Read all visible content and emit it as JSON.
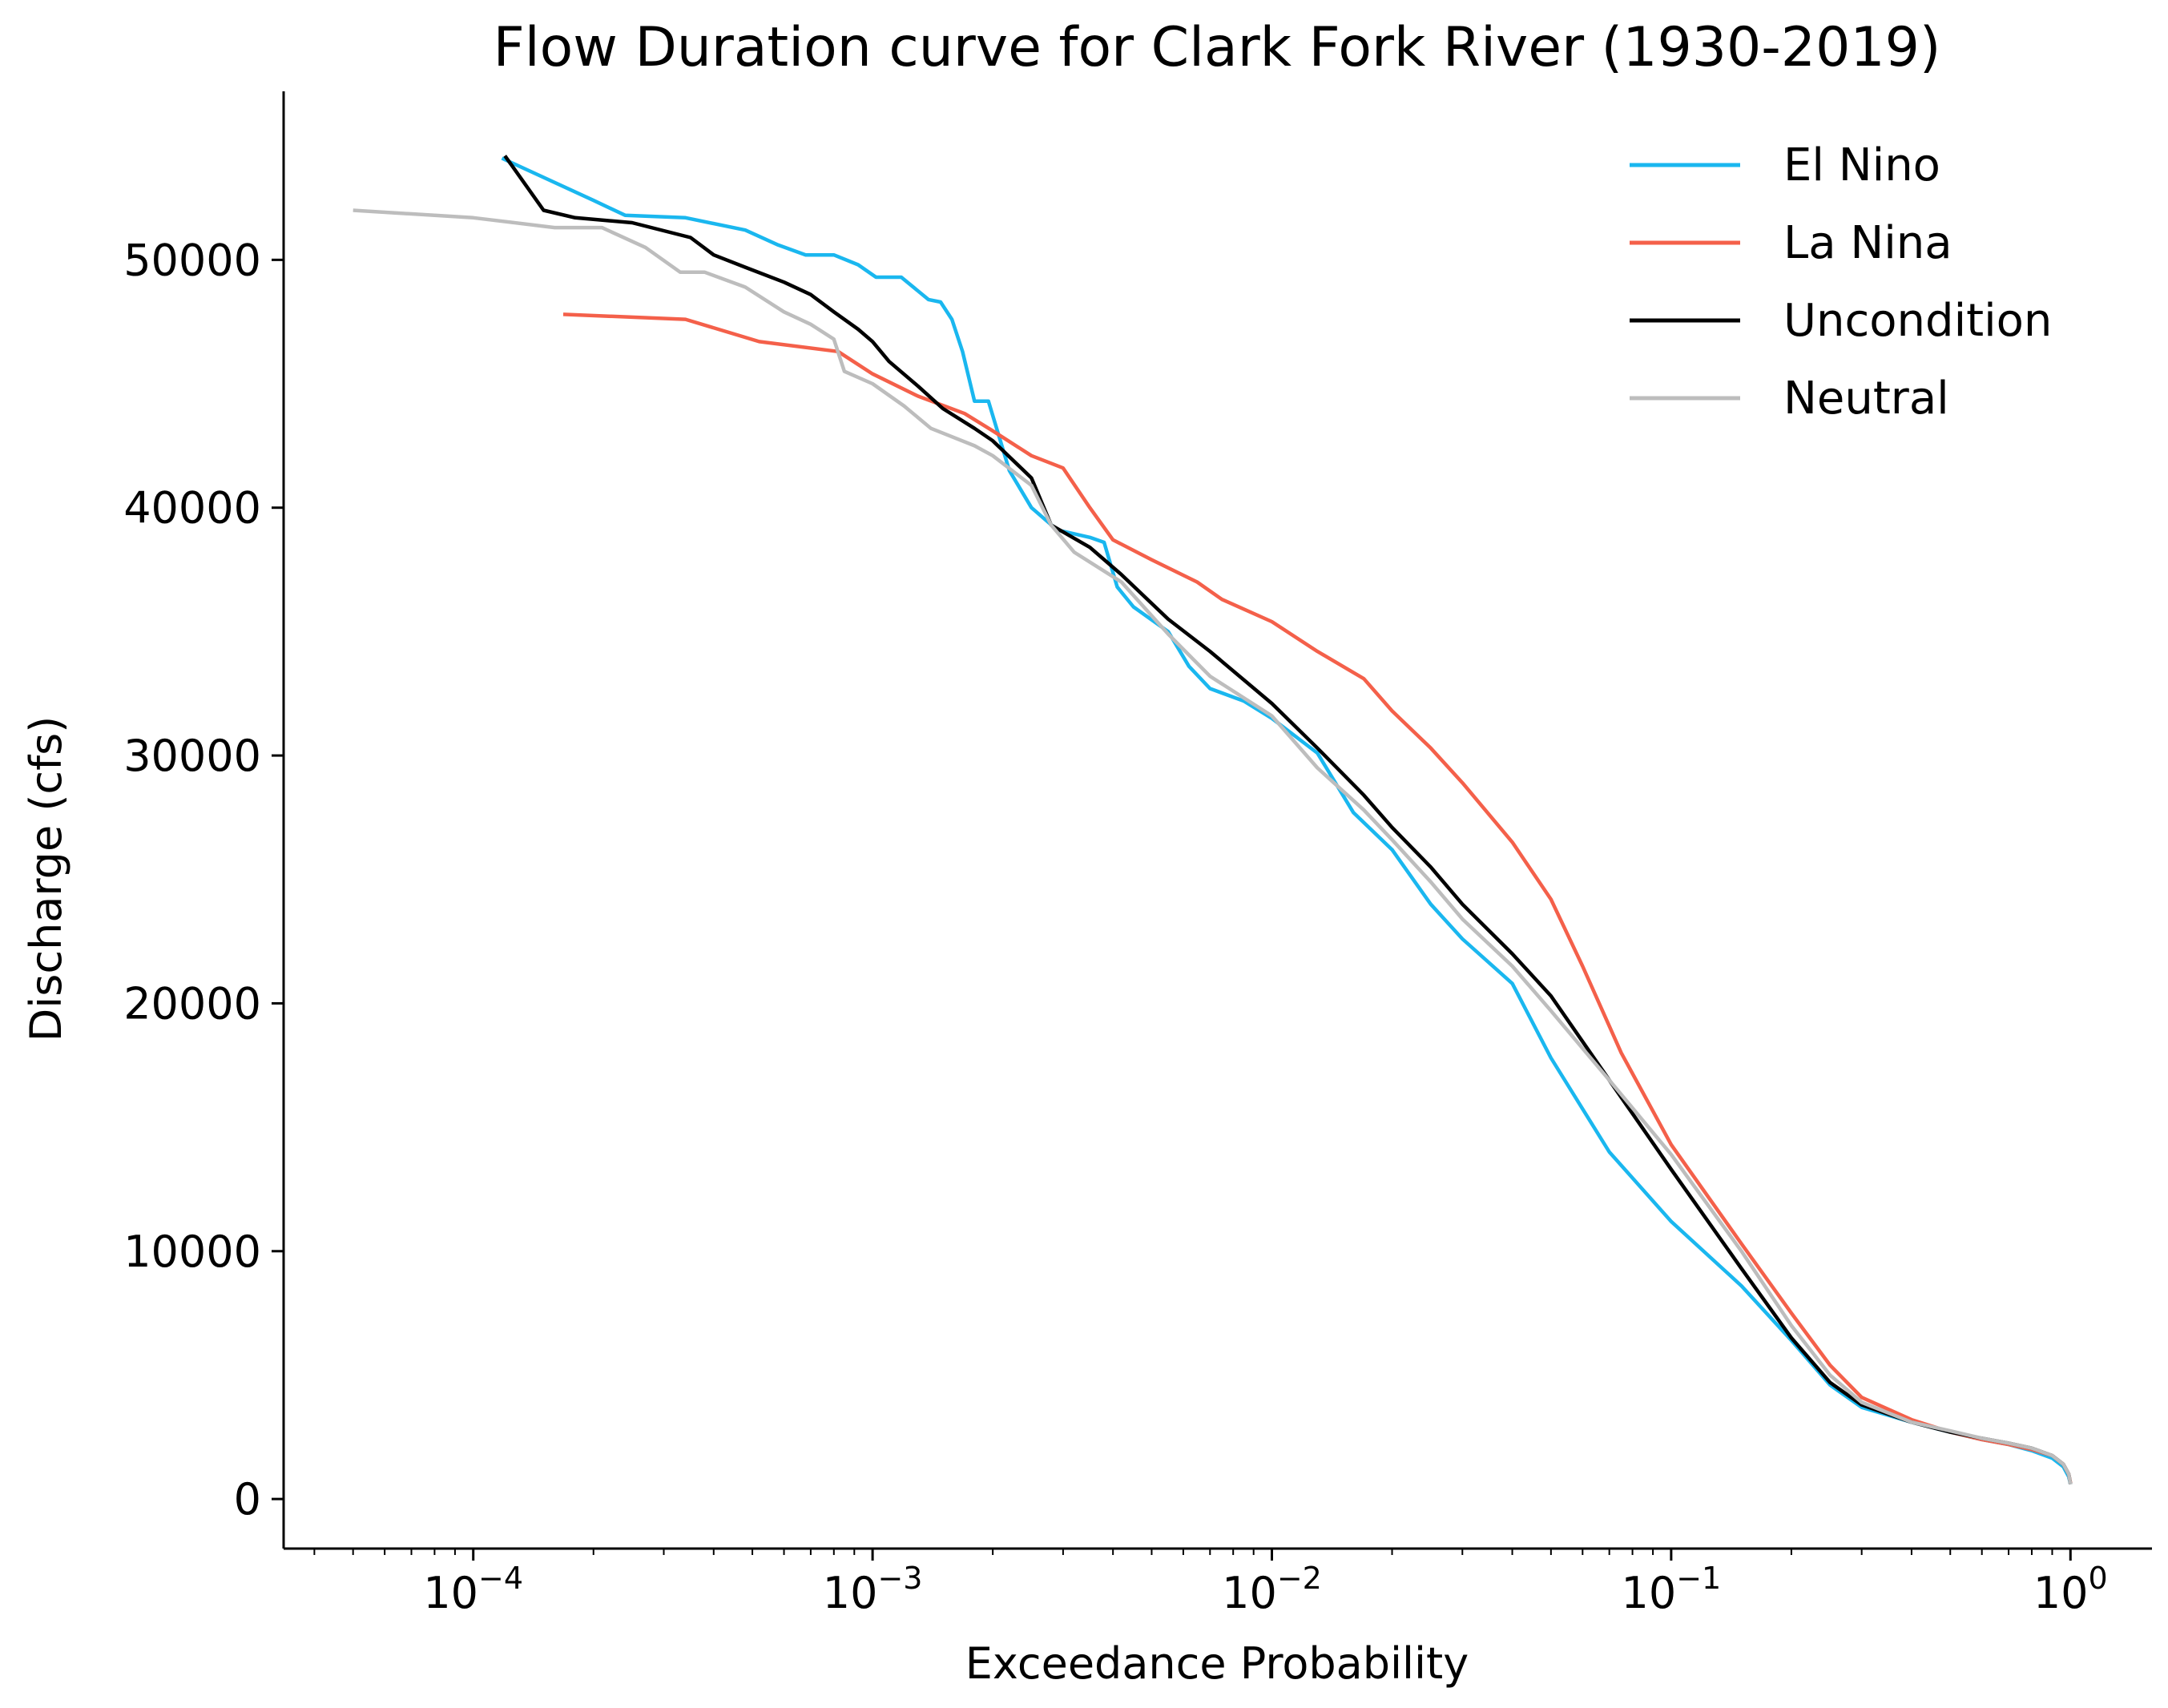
{
  "chart_data": {
    "type": "line",
    "title": "Flow Duration curve for Clark Fork River (1930-2019)",
    "xlabel": "Exceedance Probability",
    "ylabel": "Discharge (cfs)",
    "x_scale": "log",
    "xlim": [
      3.35e-05,
      1.6
    ],
    "ylim": [
      -2000,
      56800
    ],
    "x_ticks": [
      {
        "value": 0.0001,
        "base": "10",
        "exp": "−4"
      },
      {
        "value": 0.001,
        "base": "10",
        "exp": "−3"
      },
      {
        "value": 0.01,
        "base": "10",
        "exp": "−2"
      },
      {
        "value": 0.1,
        "base": "10",
        "exp": "−1"
      },
      {
        "value": 1,
        "base": "10",
        "exp": "0"
      }
    ],
    "y_ticks": [
      {
        "value": 0,
        "label": "0"
      },
      {
        "value": 10000,
        "label": "10000"
      },
      {
        "value": 20000,
        "label": "20000"
      },
      {
        "value": 30000,
        "label": "30000"
      },
      {
        "value": 40000,
        "label": "40000"
      },
      {
        "value": 50000,
        "label": "50000"
      }
    ],
    "legend_position": "top-right",
    "grid": false,
    "series": [
      {
        "name": "El Nino",
        "color": "#1ab7ef",
        "points": [
          [
            0.000118,
            54100
          ],
          [
            0.0002,
            52400
          ],
          [
            0.00024,
            51800
          ],
          [
            0.00034,
            51700
          ],
          [
            0.00048,
            51200
          ],
          [
            0.00058,
            50600
          ],
          [
            0.00068,
            50200
          ],
          [
            0.0008,
            50200
          ],
          [
            0.00092,
            49800
          ],
          [
            0.00102,
            49300
          ],
          [
            0.00118,
            49300
          ],
          [
            0.00138,
            48400
          ],
          [
            0.00148,
            48300
          ],
          [
            0.00158,
            47600
          ],
          [
            0.00168,
            46300
          ],
          [
            0.0018,
            44300
          ],
          [
            0.00195,
            44300
          ],
          [
            0.0022,
            41500
          ],
          [
            0.0025,
            40000
          ],
          [
            0.0029,
            39100
          ],
          [
            0.0035,
            38800
          ],
          [
            0.0038,
            38600
          ],
          [
            0.0041,
            36800
          ],
          [
            0.0045,
            36000
          ],
          [
            0.0055,
            35000
          ],
          [
            0.0062,
            33600
          ],
          [
            0.007,
            32700
          ],
          [
            0.0085,
            32200
          ],
          [
            0.01,
            31500
          ],
          [
            0.013,
            30100
          ],
          [
            0.016,
            27700
          ],
          [
            0.02,
            26200
          ],
          [
            0.025,
            24000
          ],
          [
            0.03,
            22600
          ],
          [
            0.04,
            20800
          ],
          [
            0.05,
            17800
          ],
          [
            0.07,
            14000
          ],
          [
            0.1,
            11200
          ],
          [
            0.15,
            8600
          ],
          [
            0.2,
            6400
          ],
          [
            0.25,
            4600
          ],
          [
            0.3,
            3700
          ],
          [
            0.4,
            3100
          ],
          [
            0.5,
            2700
          ],
          [
            0.6,
            2400
          ],
          [
            0.7,
            2200
          ],
          [
            0.8,
            1950
          ],
          [
            0.9,
            1650
          ],
          [
            0.96,
            1300
          ],
          [
            0.99,
            900
          ],
          [
            1.0,
            600
          ]
        ]
      },
      {
        "name": "La Nina",
        "color": "#f4604a",
        "points": [
          [
            0.000168,
            47800
          ],
          [
            0.00034,
            47600
          ],
          [
            0.00052,
            46700
          ],
          [
            0.00082,
            46300
          ],
          [
            0.001,
            45400
          ],
          [
            0.0013,
            44500
          ],
          [
            0.0017,
            43800
          ],
          [
            0.002,
            43100
          ],
          [
            0.0025,
            42100
          ],
          [
            0.003,
            41600
          ],
          [
            0.0035,
            40000
          ],
          [
            0.004,
            38700
          ],
          [
            0.005,
            37900
          ],
          [
            0.0065,
            37000
          ],
          [
            0.0075,
            36300
          ],
          [
            0.01,
            35400
          ],
          [
            0.013,
            34200
          ],
          [
            0.017,
            33100
          ],
          [
            0.02,
            31800
          ],
          [
            0.025,
            30300
          ],
          [
            0.03,
            28900
          ],
          [
            0.04,
            26500
          ],
          [
            0.05,
            24200
          ],
          [
            0.06,
            21500
          ],
          [
            0.075,
            18000
          ],
          [
            0.1,
            14300
          ],
          [
            0.15,
            10300
          ],
          [
            0.2,
            7500
          ],
          [
            0.25,
            5400
          ],
          [
            0.3,
            4100
          ],
          [
            0.4,
            3200
          ],
          [
            0.5,
            2700
          ],
          [
            0.6,
            2400
          ],
          [
            0.7,
            2200
          ],
          [
            0.8,
            2000
          ],
          [
            0.9,
            1750
          ],
          [
            0.96,
            1400
          ],
          [
            0.99,
            1000
          ],
          [
            1.0,
            650
          ]
        ]
      },
      {
        "name": "Uncondition",
        "color": "#000000",
        "points": [
          [
            0.00012,
            54200
          ],
          [
            0.00015,
            52000
          ],
          [
            0.00018,
            51700
          ],
          [
            0.00025,
            51500
          ],
          [
            0.00035,
            50900
          ],
          [
            0.0004,
            50200
          ],
          [
            0.00048,
            49700
          ],
          [
            0.0006,
            49100
          ],
          [
            0.0007,
            48600
          ],
          [
            0.0008,
            47900
          ],
          [
            0.00092,
            47200
          ],
          [
            0.001,
            46700
          ],
          [
            0.0011,
            45900
          ],
          [
            0.0013,
            44900
          ],
          [
            0.0015,
            44000
          ],
          [
            0.0018,
            43200
          ],
          [
            0.002,
            42700
          ],
          [
            0.0025,
            41200
          ],
          [
            0.0028,
            39300
          ],
          [
            0.0035,
            38400
          ],
          [
            0.0042,
            37300
          ],
          [
            0.0055,
            35500
          ],
          [
            0.007,
            34200
          ],
          [
            0.01,
            32100
          ],
          [
            0.013,
            30300
          ],
          [
            0.017,
            28400
          ],
          [
            0.02,
            27100
          ],
          [
            0.025,
            25500
          ],
          [
            0.03,
            24000
          ],
          [
            0.04,
            22000
          ],
          [
            0.05,
            20300
          ],
          [
            0.07,
            16900
          ],
          [
            0.1,
            13300
          ],
          [
            0.15,
            9300
          ],
          [
            0.2,
            6500
          ],
          [
            0.25,
            4700
          ],
          [
            0.3,
            3800
          ],
          [
            0.4,
            3100
          ],
          [
            0.5,
            2700
          ],
          [
            0.6,
            2450
          ],
          [
            0.7,
            2250
          ],
          [
            0.8,
            2050
          ],
          [
            0.9,
            1750
          ],
          [
            0.96,
            1400
          ],
          [
            0.99,
            1000
          ],
          [
            1.0,
            600
          ]
        ]
      },
      {
        "name": "Neutral",
        "color": "#bdbdbd",
        "points": [
          [
            5e-05,
            52000
          ],
          [
            0.0001,
            51700
          ],
          [
            0.00016,
            51300
          ],
          [
            0.00021,
            51300
          ],
          [
            0.00027,
            50500
          ],
          [
            0.00033,
            49500
          ],
          [
            0.00038,
            49500
          ],
          [
            0.00048,
            48900
          ],
          [
            0.0006,
            47900
          ],
          [
            0.0007,
            47400
          ],
          [
            0.0008,
            46800
          ],
          [
            0.00085,
            45500
          ],
          [
            0.001,
            45000
          ],
          [
            0.0012,
            44100
          ],
          [
            0.0014,
            43200
          ],
          [
            0.0018,
            42500
          ],
          [
            0.002,
            42100
          ],
          [
            0.0025,
            40900
          ],
          [
            0.0028,
            39300
          ],
          [
            0.0032,
            38200
          ],
          [
            0.0042,
            37000
          ],
          [
            0.0055,
            34900
          ],
          [
            0.007,
            33200
          ],
          [
            0.01,
            31600
          ],
          [
            0.013,
            29500
          ],
          [
            0.017,
            27800
          ],
          [
            0.02,
            26600
          ],
          [
            0.025,
            24900
          ],
          [
            0.03,
            23400
          ],
          [
            0.04,
            21500
          ],
          [
            0.05,
            19700
          ],
          [
            0.07,
            16900
          ],
          [
            0.1,
            13900
          ],
          [
            0.15,
            10000
          ],
          [
            0.2,
            7000
          ],
          [
            0.25,
            5000
          ],
          [
            0.3,
            3900
          ],
          [
            0.4,
            3100
          ],
          [
            0.5,
            2750
          ],
          [
            0.6,
            2450
          ],
          [
            0.7,
            2250
          ],
          [
            0.8,
            2050
          ],
          [
            0.9,
            1750
          ],
          [
            0.96,
            1400
          ],
          [
            0.99,
            1000
          ],
          [
            1.0,
            600
          ]
        ]
      }
    ]
  }
}
